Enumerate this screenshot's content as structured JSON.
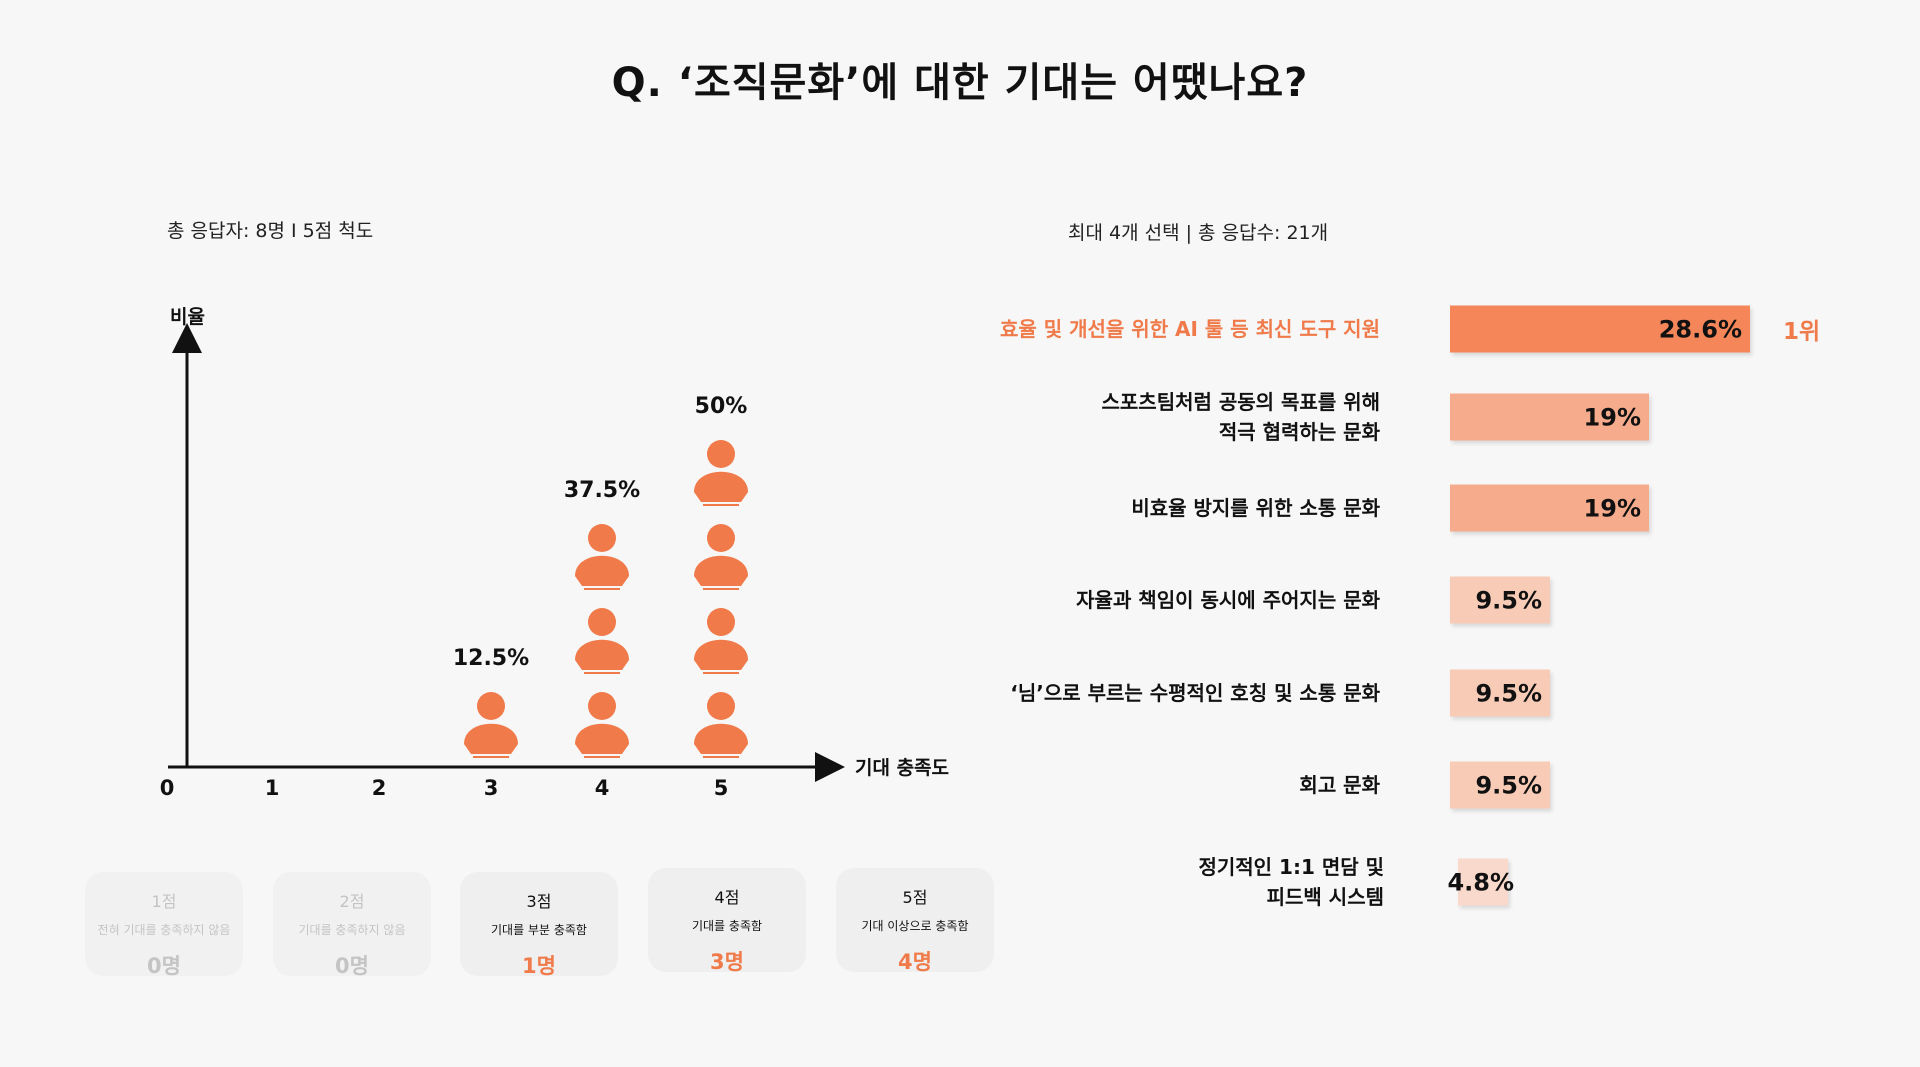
{
  "title": "Q. ‘조직문화’에 대한 기대는 어땠나요?",
  "left": {
    "subtitle": "총 응답자: 8명 I 5점 척도",
    "legend": [
      {
        "score": "1점",
        "desc": "전혀 기대를 충족하지 않음",
        "count": "0명",
        "state": "dim"
      },
      {
        "score": "2점",
        "desc": "기대를 충족하지 않음",
        "count": "0명",
        "state": "dim"
      },
      {
        "score": "3점",
        "desc": "기대를 부분 충족함",
        "count": "1명",
        "state": "active"
      },
      {
        "score": "4점",
        "desc": "기대를 충족함",
        "count": "3명",
        "state": "active"
      },
      {
        "score": "5점",
        "desc": "기대 이상으로 충족함",
        "count": "4명",
        "state": "active"
      }
    ]
  },
  "right": {
    "subtitle": "최대 4개 선택 | 총 응답수: 21개",
    "rank_label": "1위"
  },
  "colors": {
    "accent": "#f07a4a",
    "person": "#f07a4a",
    "bar_top": "#f4865a",
    "bar_mid": "#f6ab8c",
    "bar_low": "#f8cbb7",
    "bar_min": "#f9d9cc"
  },
  "chart_data": [
    {
      "type": "scatter",
      "title": "",
      "xlabel": "기대 충족도",
      "ylabel": "비율",
      "x_ticks": [
        "0",
        "1",
        "2",
        "3",
        "4",
        "5"
      ],
      "points": [
        {
          "x": 3,
          "count": 1,
          "label": "12.5%"
        },
        {
          "x": 4,
          "count": 3,
          "label": "37.5%"
        },
        {
          "x": 5,
          "count": 4,
          "label": "50%"
        }
      ]
    },
    {
      "type": "bar",
      "orientation": "horizontal",
      "categories": [
        "효율 및 개선을 위한 AI 툴 등 최신 도구 지원",
        "스포츠팀처럼 공동의 목표를 위해\n적극 협력하는 문화",
        "비효율 방지를 위한 소통 문화",
        "자율과 책임이 동시에 주어지는 문화",
        "‘님’으로 부르는 수평적인 호칭 및 소통 문화",
        "회고 문화",
        "정기적인 1:1 면담 및\n피드백 시스템"
      ],
      "values": [
        28.6,
        19,
        19,
        9.5,
        9.5,
        9.5,
        4.8
      ],
      "labels": [
        "28.6%",
        "19%",
        "19%",
        "9.5%",
        "9.5%",
        "9.5%",
        "4.8%"
      ],
      "xlim": [
        0,
        28.6
      ]
    }
  ]
}
